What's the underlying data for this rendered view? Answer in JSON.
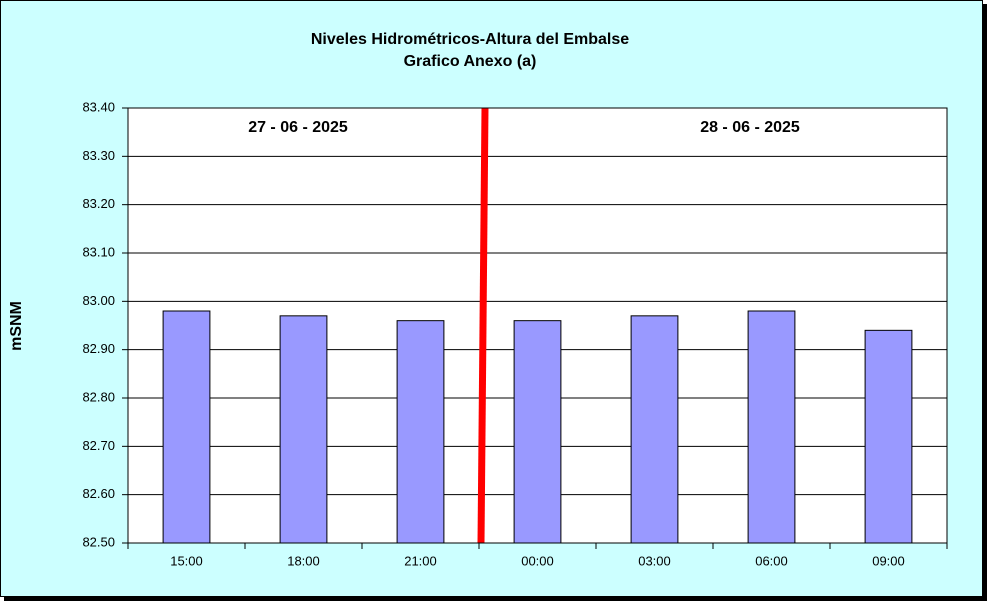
{
  "chart_data": {
    "type": "bar",
    "title": "Niveles Hidrométricos-Altura del Embalse",
    "subtitle": "Grafico Anexo (a)",
    "y_label": "mSNM",
    "annotations": [
      "27 - 06 - 2025",
      "28 - 06 - 2025"
    ],
    "categories": [
      "15:00",
      "18:00",
      "21:00",
      "00:00",
      "03:00",
      "06:00",
      "09:00"
    ],
    "values": [
      82.98,
      82.97,
      82.96,
      82.96,
      82.97,
      82.98,
      82.94
    ],
    "color": "#9999ff",
    "ylim": [
      82.5,
      83.4
    ],
    "yticks": [
      {
        "value": 82.5,
        "label": "82.50"
      },
      {
        "value": 82.6,
        "label": "82.60"
      },
      {
        "value": 82.7,
        "label": "82.70"
      },
      {
        "value": 82.8,
        "label": "82.80"
      },
      {
        "value": 82.9,
        "label": "82.90"
      },
      {
        "value": 83.0,
        "label": "83.00"
      },
      {
        "value": 83.1,
        "label": "83.10"
      },
      {
        "value": 83.2,
        "label": "83.20"
      },
      {
        "value": 83.3,
        "label": "83.30"
      },
      {
        "value": 83.4,
        "label": "83.40"
      }
    ],
    "grid": true
  }
}
